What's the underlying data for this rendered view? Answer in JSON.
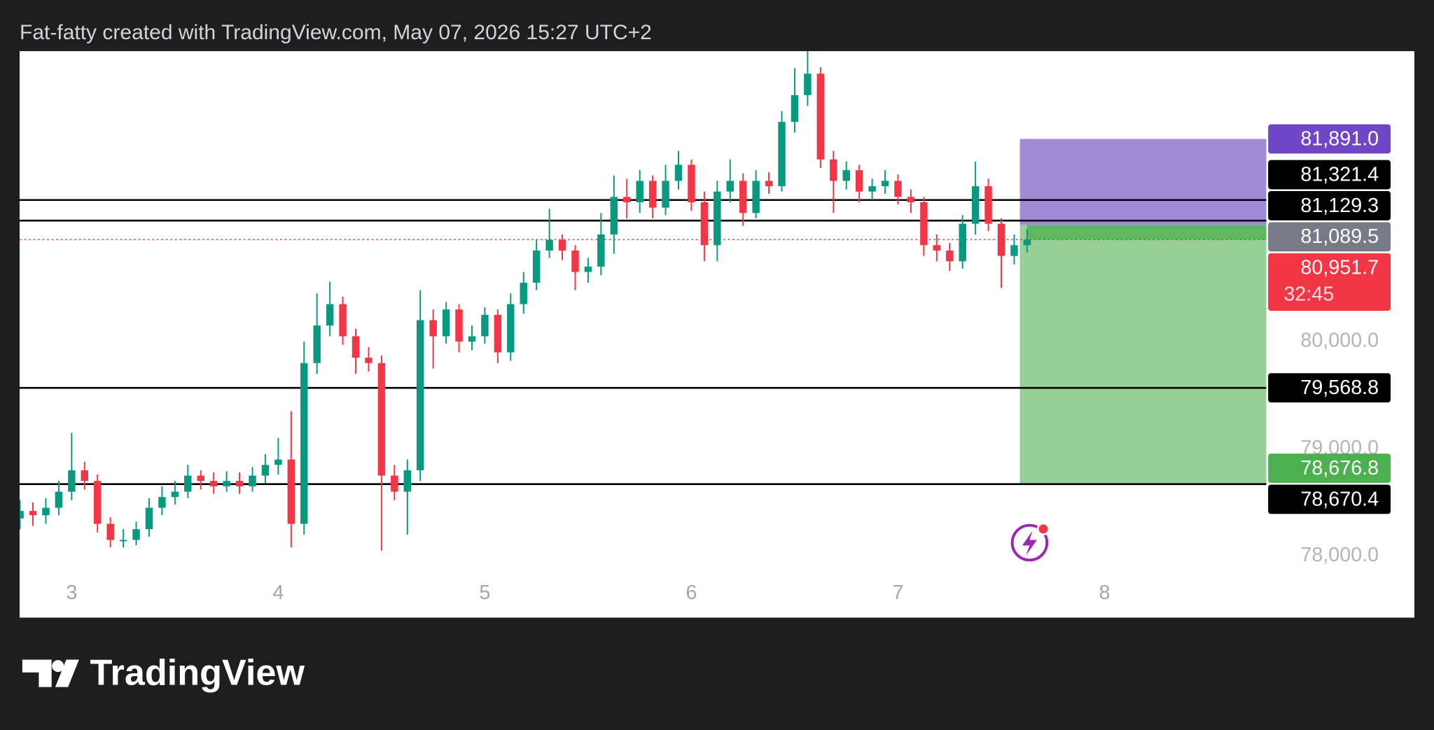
{
  "header": {
    "title": "Fat-fatty created with TradingView.com, May 07, 2026 15:27 UTC+2"
  },
  "branding": "TradingView",
  "chart_data": {
    "type": "candlestick",
    "x": [
      2.75,
      2.8125,
      2.875,
      2.9375,
      3,
      3.0625,
      3.125,
      3.1875,
      3.25,
      3.3125,
      3.375,
      3.4375,
      3.5,
      3.5625,
      3.625,
      3.6875,
      3.75,
      3.8125,
      3.875,
      3.9375,
      4,
      4.0625,
      4.125,
      4.1875,
      4.25,
      4.3125,
      4.375,
      4.4375,
      4.5,
      4.5625,
      4.625,
      4.6875,
      4.75,
      4.8125,
      4.875,
      4.9375,
      5,
      5.0625,
      5.125,
      5.1875,
      5.25,
      5.3125,
      5.375,
      5.4375,
      5.5,
      5.5625,
      5.625,
      5.6875,
      5.75,
      5.8125,
      5.875,
      5.9375,
      6,
      6.0625,
      6.125,
      6.1875,
      6.25,
      6.3125,
      6.375,
      6.4375,
      6.5,
      6.5625,
      6.625,
      6.6875,
      6.75,
      6.8125,
      6.875,
      6.9375,
      7,
      7.0625,
      7.125,
      7.1875,
      7.25,
      7.3125,
      7.375,
      7.4375,
      7.5,
      7.5625,
      7.625
    ],
    "open": [
      78350,
      78420,
      78380,
      78450,
      78600,
      78800,
      78700,
      78300,
      78150,
      78150,
      78250,
      78450,
      78550,
      78600,
      78750,
      78700,
      78650,
      78700,
      78650,
      78750,
      78850,
      78900,
      78300,
      79800,
      80150,
      80350,
      80050,
      79850,
      79800,
      78750,
      78600,
      78800,
      80200,
      80050,
      80300,
      80000,
      80050,
      80250,
      79900,
      80350,
      80550,
      80850,
      80950,
      80850,
      80650,
      80700,
      81000,
      81350,
      81300,
      81500,
      81250,
      81500,
      81650,
      81300,
      80900,
      81400,
      81500,
      81200,
      81500,
      81450,
      82050,
      82300,
      82500,
      81700,
      81500,
      81600,
      81400,
      81450,
      81500,
      81350,
      81300,
      80900,
      80850,
      80750,
      81100,
      81450,
      81100,
      80800,
      80900
    ],
    "high": [
      78520,
      78500,
      78540,
      78700,
      79150,
      78880,
      78760,
      78360,
      78250,
      78320,
      78540,
      78650,
      78700,
      78850,
      78800,
      78780,
      78790,
      78780,
      78830,
      78950,
      79100,
      79350,
      80000,
      80450,
      80560,
      80420,
      80120,
      79950,
      79870,
      78850,
      78900,
      80480,
      80300,
      80370,
      80350,
      80150,
      80320,
      80300,
      80450,
      80650,
      80950,
      81240,
      81000,
      80900,
      80780,
      81200,
      81550,
      81520,
      81600,
      81550,
      81650,
      81780,
      81700,
      81400,
      81500,
      81700,
      81570,
      81600,
      81580,
      82150,
      82550,
      82720,
      82560,
      81780,
      81680,
      81650,
      81520,
      81600,
      81560,
      81420,
      81350,
      81000,
      80920,
      81180,
      81680,
      81520,
      81150,
      81000,
      81050
    ],
    "low": [
      78250,
      78280,
      78300,
      78380,
      78520,
      78620,
      78220,
      78080,
      78080,
      78100,
      78180,
      78380,
      78480,
      78540,
      78620,
      78580,
      78600,
      78580,
      78600,
      78680,
      78760,
      78080,
      78200,
      79700,
      80050,
      79970,
      79700,
      79720,
      78050,
      78520,
      78200,
      78700,
      79750,
      79980,
      79900,
      79920,
      79980,
      79800,
      79820,
      80260,
      80480,
      80780,
      80760,
      80480,
      80550,
      80620,
      80820,
      81150,
      81200,
      81150,
      81180,
      81420,
      81220,
      80750,
      80750,
      81300,
      81080,
      81150,
      81380,
      81400,
      81950,
      82200,
      81620,
      81200,
      81420,
      81300,
      81320,
      81380,
      81280,
      81200,
      80800,
      80750,
      80660,
      80680,
      81000,
      81030,
      80500,
      80720,
      80830
    ],
    "close": [
      78420,
      78380,
      78450,
      78600,
      78800,
      78700,
      78300,
      78150,
      78150,
      78250,
      78450,
      78550,
      78600,
      78750,
      78700,
      78650,
      78700,
      78650,
      78750,
      78850,
      78900,
      78300,
      79800,
      80150,
      80350,
      80050,
      79850,
      79800,
      78750,
      78600,
      78800,
      80200,
      80050,
      80300,
      80000,
      80050,
      80250,
      79900,
      80350,
      80550,
      80850,
      80950,
      80850,
      80650,
      80700,
      81000,
      81350,
      81300,
      81500,
      81250,
      81500,
      81650,
      81300,
      80900,
      81400,
      81500,
      81200,
      81500,
      81450,
      82050,
      82300,
      82500,
      81700,
      81500,
      81600,
      81400,
      81450,
      81500,
      81350,
      81300,
      80900,
      80850,
      80750,
      81100,
      81450,
      81100,
      80800,
      80900,
      80951.7
    ],
    "up_color": "#089981",
    "down_color": "#f23645",
    "xlim": [
      2.748,
      8.783
    ],
    "xticks": [
      3,
      4,
      5,
      6,
      7,
      8
    ],
    "ylim": [
      77425,
      82710
    ],
    "yticks": [
      {
        "value": 78000,
        "label": "78,000.0"
      },
      {
        "value": 79000,
        "label": "79,000.0"
      },
      {
        "value": 80000,
        "label": "80,000.0"
      }
    ],
    "grid": false,
    "hlines": [
      81321.4,
      81129.3,
      79568.8,
      78670.4
    ],
    "hline_color": "#000000",
    "last_price_line_color": "#f23645",
    "position": {
      "entry": 81089.5,
      "stop": 81891.0,
      "target": 78676.8,
      "start": 7.59,
      "stop_color": "#a18bd6",
      "target_color": "#96d095",
      "profit_color": "#5fb75e"
    },
    "price_labels": [
      {
        "value": 81891.0,
        "label": "81,891.0",
        "color": "#6f46c6"
      },
      {
        "value": 81321.4,
        "label": "81,321.4",
        "color": "#000000"
      },
      {
        "value": 81129.3,
        "label": "81,129.3",
        "color": "#000000"
      },
      {
        "value": 81089.5,
        "label": "81,089.5",
        "color": "#787b86"
      },
      {
        "value": 80951.7,
        "label": "80,951.7",
        "color": "#f23645",
        "countdown": "32:45"
      },
      {
        "value": 79568.8,
        "label": "79,568.8",
        "color": "#000000"
      },
      {
        "value": 78676.8,
        "label": "78,676.8",
        "color": "#4caf50"
      },
      {
        "value": 78670.4,
        "label": "78,670.4",
        "color": "#000000"
      }
    ]
  }
}
